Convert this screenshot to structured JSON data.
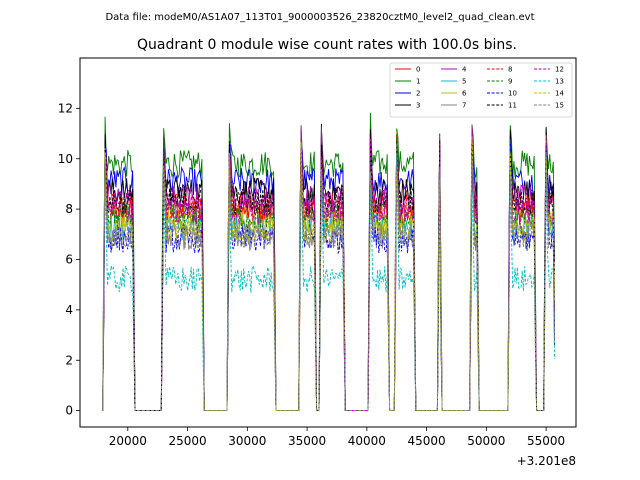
{
  "chart_data": {
    "type": "line",
    "suptitle": "Data file: modeM0/AS1A07_113T01_9000003526_23820cztM0_level2_quad_clean.evt",
    "title": "Quadrant 0 module wise count rates with 100.0s bins.",
    "xlabel": "",
    "ylabel": "",
    "x_offset_label": "+3.201e8",
    "xlim": [
      16000,
      57500
    ],
    "ylim": [
      -0.65,
      14.0
    ],
    "x_ticks": [
      20000,
      25000,
      30000,
      35000,
      40000,
      45000,
      50000,
      55000
    ],
    "x_tick_labels": [
      "20000",
      "25000",
      "30000",
      "35000",
      "40000",
      "45000",
      "50000",
      "55000"
    ],
    "y_ticks": [
      0,
      2,
      4,
      6,
      8,
      10,
      12
    ],
    "y_tick_labels": [
      "0",
      "2",
      "4",
      "6",
      "8",
      "10",
      "12"
    ],
    "legend_location": "upper right",
    "on_segments": [
      [
        18000,
        20500
      ],
      [
        22900,
        26300
      ],
      [
        28400,
        32300
      ],
      [
        34400,
        35700
      ],
      [
        36100,
        38100
      ],
      [
        40200,
        41800
      ],
      [
        42400,
        44000
      ],
      [
        46000,
        46200
      ],
      [
        48700,
        49300
      ],
      [
        51900,
        54100
      ],
      [
        54900,
        55700
      ]
    ],
    "baseline": 0,
    "series": [
      {
        "name": "0",
        "color": "#ff0000",
        "dash": "solid",
        "level": 7.9
      },
      {
        "name": "1",
        "color": "#008000",
        "dash": "solid",
        "level": 9.8
      },
      {
        "name": "2",
        "color": "#0000ff",
        "dash": "solid",
        "level": 9.1
      },
      {
        "name": "3",
        "color": "#000000",
        "dash": "solid",
        "level": 8.7
      },
      {
        "name": "4",
        "color": "#bf00bf",
        "dash": "solid",
        "level": 8.4
      },
      {
        "name": "5",
        "color": "#00bfbf",
        "dash": "solid",
        "level": 7.3
      },
      {
        "name": "6",
        "color": "#bfbf00",
        "dash": "solid",
        "level": 7.6
      },
      {
        "name": "7",
        "color": "#808080",
        "dash": "solid",
        "level": 6.9
      },
      {
        "name": "8",
        "color": "#ff0000",
        "dash": "dashed",
        "level": 8.1
      },
      {
        "name": "9",
        "color": "#008000",
        "dash": "dashed",
        "level": 7.7
      },
      {
        "name": "10",
        "color": "#0000ff",
        "dash": "dashed",
        "level": 6.8
      },
      {
        "name": "11",
        "color": "#000000",
        "dash": "dashed",
        "level": 8.3
      },
      {
        "name": "12",
        "color": "#bf00bf",
        "dash": "dashed",
        "level": 7.9
      },
      {
        "name": "13",
        "color": "#00bfbf",
        "dash": "dashed",
        "level": 5.2
      },
      {
        "name": "14",
        "color": "#bfbf00",
        "dash": "dashed",
        "level": 7.2
      },
      {
        "name": "15",
        "color": "#808080",
        "dash": "dashed",
        "level": 7.0
      }
    ]
  }
}
